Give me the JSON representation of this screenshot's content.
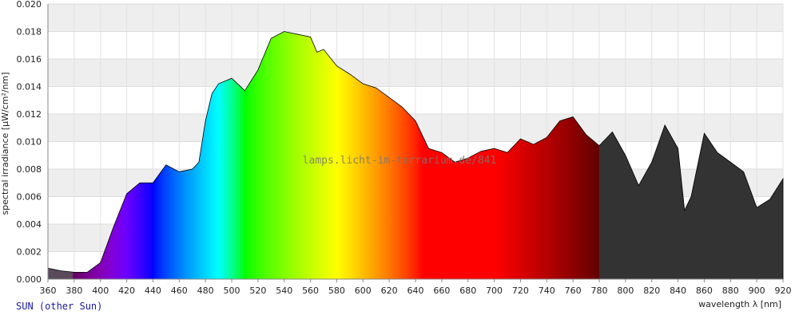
{
  "chart_data": {
    "type": "area",
    "ylabel": "spectral irradiance [µW/cm²/nm]",
    "xlabel": "wavelength λ [nm]",
    "annotation": "lamps.licht-im-terrarium.de/841",
    "x": [
      360,
      370,
      380,
      390,
      400,
      410,
      420,
      430,
      440,
      450,
      460,
      470,
      475,
      480,
      485,
      490,
      500,
      510,
      520,
      530,
      540,
      550,
      560,
      565,
      570,
      580,
      590,
      600,
      610,
      620,
      630,
      640,
      650,
      660,
      670,
      680,
      690,
      700,
      710,
      720,
      730,
      740,
      750,
      760,
      770,
      780,
      790,
      800,
      810,
      820,
      830,
      840,
      845,
      850,
      860,
      870,
      880,
      890,
      900,
      910,
      920
    ],
    "series": [
      {
        "name": "SUN (other Sun)",
        "values": [
          0.0008,
          0.0006,
          0.0005,
          0.0005,
          0.0012,
          0.0038,
          0.0062,
          0.007,
          0.007,
          0.0083,
          0.0078,
          0.008,
          0.0085,
          0.0115,
          0.0135,
          0.0142,
          0.0146,
          0.0137,
          0.0152,
          0.0175,
          0.018,
          0.0178,
          0.0176,
          0.0165,
          0.0167,
          0.0155,
          0.0149,
          0.0142,
          0.0139,
          0.0132,
          0.0125,
          0.0115,
          0.0095,
          0.0092,
          0.0085,
          0.0088,
          0.0093,
          0.0095,
          0.0092,
          0.0102,
          0.0098,
          0.0103,
          0.0115,
          0.0118,
          0.0105,
          0.0097,
          0.0107,
          0.009,
          0.0068,
          0.0085,
          0.0112,
          0.0095,
          0.005,
          0.006,
          0.0106,
          0.0092,
          0.0085,
          0.0078,
          0.0052,
          0.0058,
          0.0073
        ]
      }
    ],
    "xlim": [
      360,
      920
    ],
    "xticks": [
      360,
      380,
      400,
      420,
      440,
      460,
      480,
      500,
      520,
      540,
      560,
      580,
      600,
      620,
      640,
      660,
      680,
      700,
      720,
      740,
      760,
      780,
      800,
      820,
      840,
      860,
      880,
      900,
      920
    ],
    "ylim": [
      0,
      0.02
    ],
    "yticks": [
      {
        "value": 0,
        "label": "0.000"
      },
      {
        "value": 0.002,
        "label": "0.002"
      },
      {
        "value": 0.004,
        "label": "0.004"
      },
      {
        "value": 0.006,
        "label": "0.006"
      },
      {
        "value": 0.008,
        "label": "0.008"
      },
      {
        "value": 0.01,
        "label": "0.010"
      },
      {
        "value": 0.012,
        "label": "0.012"
      },
      {
        "value": 0.014,
        "label": "0.014"
      },
      {
        "value": 0.016,
        "label": "0.016"
      },
      {
        "value": 0.018,
        "label": "0.018"
      },
      {
        "value": 0.02,
        "label": "0.020"
      }
    ],
    "grid": true
  }
}
